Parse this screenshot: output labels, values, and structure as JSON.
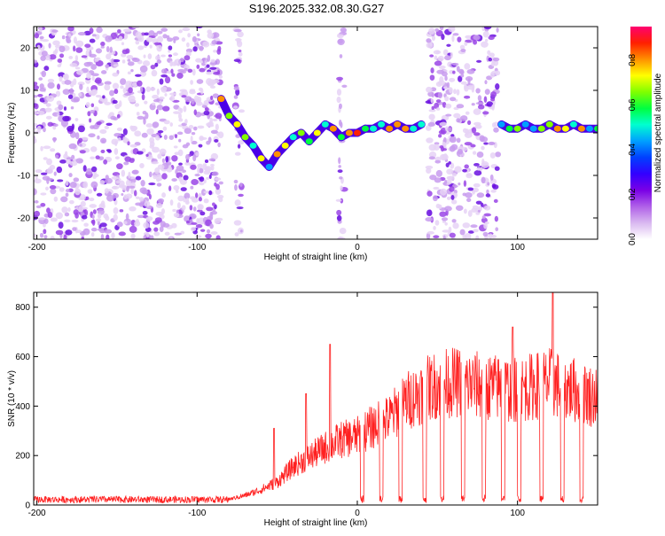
{
  "title": "S196.2025.332.08.30.G27",
  "chart_data": [
    {
      "type": "heatmap",
      "name": "spectrogram",
      "xlabel": "Height of straight line (km)",
      "ylabel": "Frequency (Hz)",
      "xlim": [
        -202,
        150
      ],
      "ylim": [
        -25,
        25
      ],
      "xticks": [
        -200,
        -100,
        0,
        100
      ],
      "yticks": [
        -20,
        -10,
        0,
        10,
        20
      ],
      "colorbar": {
        "label": "Normalized spectral amplitude",
        "range": [
          0,
          0.95
        ],
        "ticks": [
          "0.0",
          "0.2",
          "0.4",
          "0.6",
          "0.8"
        ],
        "tick_values": [
          0,
          0.2,
          0.4,
          0.6,
          0.8
        ],
        "colors": [
          "#ffffff",
          "#d9b8f0",
          "#b060e8",
          "#7a00e6",
          "#3300ff",
          "#0040ff",
          "#00a0ff",
          "#00ffd0",
          "#00ff40",
          "#80ff00",
          "#ffff00",
          "#ff9000",
          "#ff2000",
          "#ff0070"
        ]
      },
      "signal_track": [
        {
          "x": -85,
          "f": 8
        },
        {
          "x": -80,
          "f": 4
        },
        {
          "x": -75,
          "f": 2
        },
        {
          "x": -70,
          "f": -1
        },
        {
          "x": -65,
          "f": -3
        },
        {
          "x": -60,
          "f": -6
        },
        {
          "x": -55,
          "f": -8
        },
        {
          "x": -50,
          "f": -5
        },
        {
          "x": -45,
          "f": -3
        },
        {
          "x": -40,
          "f": -1
        },
        {
          "x": -35,
          "f": 0
        },
        {
          "x": -30,
          "f": -2
        },
        {
          "x": -25,
          "f": 0
        },
        {
          "x": -20,
          "f": 2
        },
        {
          "x": -15,
          "f": 1
        },
        {
          "x": -10,
          "f": -1
        },
        {
          "x": -5,
          "f": 0
        },
        {
          "x": 0,
          "f": 0
        },
        {
          "x": 5,
          "f": 1
        },
        {
          "x": 10,
          "f": 1
        },
        {
          "x": 15,
          "f": 2
        },
        {
          "x": 20,
          "f": 1
        },
        {
          "x": 25,
          "f": 2
        },
        {
          "x": 30,
          "f": 1
        },
        {
          "x": 35,
          "f": 1
        },
        {
          "x": 40,
          "f": 2
        },
        {
          "x": 90,
          "f": 2
        },
        {
          "x": 95,
          "f": 1
        },
        {
          "x": 100,
          "f": 1
        },
        {
          "x": 105,
          "f": 2
        },
        {
          "x": 110,
          "f": 1
        },
        {
          "x": 115,
          "f": 1
        },
        {
          "x": 120,
          "f": 2
        },
        {
          "x": 125,
          "f": 1
        },
        {
          "x": 130,
          "f": 1
        },
        {
          "x": 135,
          "f": 2
        },
        {
          "x": 140,
          "f": 1
        },
        {
          "x": 145,
          "f": 1
        },
        {
          "x": 150,
          "f": 1
        }
      ],
      "noise_regions": [
        [
          -202,
          -85
        ],
        [
          -76,
          -72
        ],
        [
          -12,
          -8
        ],
        [
          44,
          88
        ]
      ]
    },
    {
      "type": "line",
      "name": "snr",
      "xlabel": "Height of straight line (km)",
      "ylabel": "SNR (10 * v/v)",
      "xlim": [
        -202,
        150
      ],
      "ylim": [
        0,
        860
      ],
      "xticks": [
        -200,
        -100,
        0,
        100
      ],
      "yticks": [
        0,
        200,
        400,
        600,
        800
      ],
      "color": "#ff2020",
      "envelope": [
        {
          "x": -202,
          "y": 20
        },
        {
          "x": -80,
          "y": 30
        },
        {
          "x": -70,
          "y": 50
        },
        {
          "x": -60,
          "y": 80
        },
        {
          "x": -50,
          "y": 120
        },
        {
          "x": -40,
          "y": 200
        },
        {
          "x": -30,
          "y": 250
        },
        {
          "x": -20,
          "y": 300
        },
        {
          "x": -10,
          "y": 340
        },
        {
          "x": 0,
          "y": 360
        },
        {
          "x": 10,
          "y": 410
        },
        {
          "x": 20,
          "y": 450
        },
        {
          "x": 30,
          "y": 540
        },
        {
          "x": 40,
          "y": 590
        },
        {
          "x": 50,
          "y": 630
        },
        {
          "x": 60,
          "y": 640
        },
        {
          "x": 80,
          "y": 620
        },
        {
          "x": 100,
          "y": 600
        },
        {
          "x": 120,
          "y": 640
        },
        {
          "x": 150,
          "y": 560
        }
      ],
      "peaks": [
        {
          "x": -52,
          "y": 310
        },
        {
          "x": -32,
          "y": 450
        },
        {
          "x": -17,
          "y": 650
        },
        {
          "x": 97,
          "y": 720
        },
        {
          "x": 122,
          "y": 860
        }
      ],
      "dropouts_x": [
        3,
        15,
        27,
        42,
        53,
        66,
        79,
        91,
        101,
        115,
        128,
        140
      ]
    }
  ]
}
